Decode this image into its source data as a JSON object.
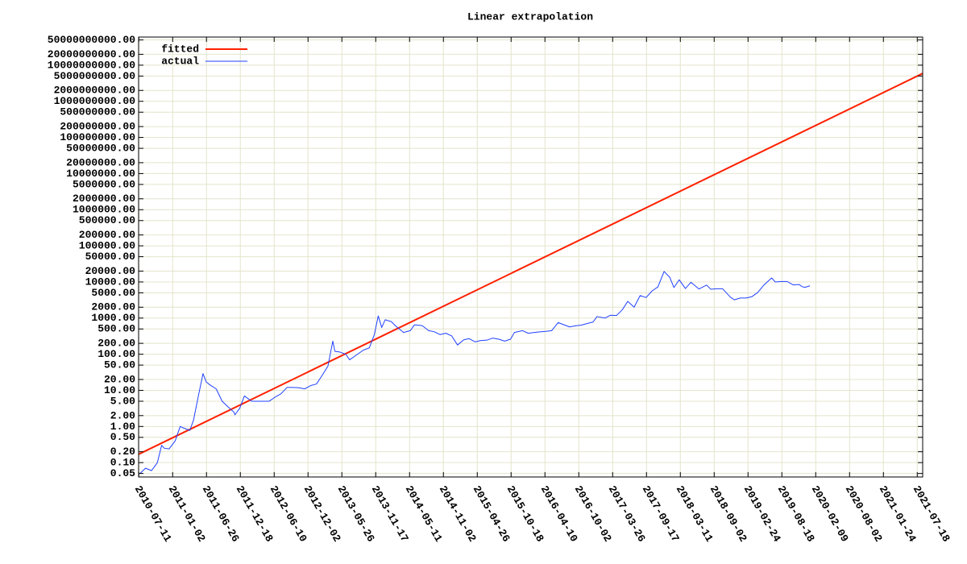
{
  "chart_data": {
    "type": "line",
    "title": "Linear extrapolation",
    "log_scale_y": true,
    "grid": true,
    "legend": "upper left",
    "xlim": [
      "2010-07-10",
      "2021-08-15"
    ],
    "xticks": [
      "2010-07-11",
      "2011-01-02",
      "2011-06-26",
      "2011-12-18",
      "2012-06-10",
      "2012-12-02",
      "2013-05-26",
      "2013-11-17",
      "2014-05-11",
      "2014-11-02",
      "2015-04-26",
      "2015-10-18",
      "2016-04-10",
      "2016-10-02",
      "2017-03-26",
      "2017-09-17",
      "2018-03-11",
      "2018-09-02",
      "2019-02-24",
      "2019-08-18",
      "2020-02-09",
      "2020-08-02",
      "2021-01-24",
      "2021-07-18"
    ],
    "ylim": [
      0.04,
      60000000000
    ],
    "yticks": [
      0.05,
      {
        "value": 0.1,
        "label": "0.10"
      },
      {
        "value": 0.2,
        "label": "0.20"
      },
      {
        "value": 0.5,
        "label": "0.50"
      },
      {
        "value": 1,
        "label": "1.00"
      },
      {
        "value": 2,
        "label": "2.00"
      },
      {
        "value": 5,
        "label": "5.00"
      },
      {
        "value": 10,
        "label": "10.00"
      },
      {
        "value": 20,
        "label": "20.00"
      },
      {
        "value": 50,
        "label": "50.00"
      },
      {
        "value": 100,
        "label": "100.00"
      },
      {
        "value": 200,
        "label": "200.00"
      },
      {
        "value": 500,
        "label": "500.00"
      },
      {
        "value": 1000,
        "label": "1000.00"
      },
      {
        "value": 2000,
        "label": "2000.00"
      },
      {
        "value": 5000,
        "label": "5000.00"
      },
      {
        "value": 10000,
        "label": "10000.00"
      },
      {
        "value": 20000,
        "label": "20000.00"
      },
      {
        "value": 50000,
        "label": "50000.00"
      },
      {
        "value": 100000,
        "label": "100000.00"
      },
      {
        "value": 200000,
        "label": "200000.00"
      },
      {
        "value": 500000,
        "label": "500000.00"
      },
      {
        "value": 1000000,
        "label": "1000000.00"
      },
      {
        "value": 2000000,
        "label": "2000000.00"
      },
      {
        "value": 5000000,
        "label": "5000000.00"
      },
      {
        "value": 10000000,
        "label": "10000000.00"
      },
      {
        "value": 20000000,
        "label": "20000000.00"
      },
      {
        "value": 50000000,
        "label": "50000000.00"
      },
      {
        "value": 100000000,
        "label": "100000000.00"
      },
      {
        "value": 200000000,
        "label": "200000000.00"
      },
      {
        "value": 500000000,
        "label": "500000000.00"
      },
      {
        "value": 1000000000,
        "label": "1000000000.00"
      },
      {
        "value": 2000000000,
        "label": "2000000000.00"
      },
      {
        "value": 5000000000,
        "label": "5000000000.00"
      },
      {
        "value": 10000000000,
        "label": "10000000000.00"
      },
      {
        "value": 20000000000,
        "label": "20000000000.00"
      },
      {
        "value": 50000000000,
        "label": "50000000000.00"
      }
    ],
    "series": [
      {
        "name": "fitted",
        "color": "#ff2000",
        "width": 2,
        "x": [
          "2010-07-10",
          "2021-08-15"
        ],
        "values": [
          0.17,
          5900000000
        ]
      },
      {
        "name": "actual",
        "color": "#2040ff",
        "width": 1,
        "x": [
          "2010-07-17",
          "2010-08-15",
          "2010-09-15",
          "2010-10-15",
          "2010-11-06",
          "2010-11-20",
          "2010-12-15",
          "2011-01-15",
          "2011-02-10",
          "2011-03-01",
          "2011-04-01",
          "2011-04-20",
          "2011-05-15",
          "2011-06-08",
          "2011-06-25",
          "2011-07-15",
          "2011-08-15",
          "2011-09-15",
          "2011-10-15",
          "2011-11-15",
          "2011-11-20",
          "2011-12-15",
          "2012-01-08",
          "2012-02-15",
          "2012-03-15",
          "2012-04-15",
          "2012-05-15",
          "2012-06-15",
          "2012-07-15",
          "2012-08-15",
          "2012-09-15",
          "2012-10-15",
          "2012-11-15",
          "2012-12-15",
          "2013-01-15",
          "2013-02-15",
          "2013-03-15",
          "2013-04-09",
          "2013-04-20",
          "2013-05-15",
          "2013-06-15",
          "2013-07-05",
          "2013-08-15",
          "2013-09-15",
          "2013-10-15",
          "2013-11-10",
          "2013-11-30",
          "2013-12-18",
          "2014-01-05",
          "2014-02-05",
          "2014-03-01",
          "2014-04-10",
          "2014-05-15",
          "2014-06-05",
          "2014-07-15",
          "2014-08-18",
          "2014-09-15",
          "2014-10-15",
          "2014-11-15",
          "2014-12-15",
          "2015-01-14",
          "2015-02-15",
          "2015-03-15",
          "2015-04-15",
          "2015-05-15",
          "2015-06-15",
          "2015-07-15",
          "2015-08-15",
          "2015-09-15",
          "2015-10-15",
          "2015-11-04",
          "2015-12-15",
          "2016-01-15",
          "2016-02-15",
          "2016-03-15",
          "2016-04-15",
          "2016-05-15",
          "2016-06-17",
          "2016-07-15",
          "2016-08-15",
          "2016-09-15",
          "2016-10-15",
          "2016-11-15",
          "2016-12-15",
          "2017-01-04",
          "2017-02-15",
          "2017-03-15",
          "2017-04-15",
          "2017-05-15",
          "2017-06-12",
          "2017-07-15",
          "2017-08-15",
          "2017-09-15",
          "2017-10-15",
          "2017-11-15",
          "2017-12-17",
          "2018-01-15",
          "2018-02-06",
          "2018-03-05",
          "2018-04-06",
          "2018-05-05",
          "2018-06-15",
          "2018-07-25",
          "2018-08-15",
          "2018-09-15",
          "2018-10-15",
          "2018-11-25",
          "2018-12-15",
          "2019-01-15",
          "2019-02-15",
          "2019-03-15",
          "2019-04-15",
          "2019-05-15",
          "2019-06-26",
          "2019-07-15",
          "2019-08-15",
          "2019-09-15",
          "2019-10-15",
          "2019-11-15",
          "2019-12-01",
          "2019-12-15",
          "2020-01-10"
        ],
        "values": [
          0.05,
          0.07,
          0.06,
          0.1,
          0.3,
          0.25,
          0.24,
          0.4,
          1,
          0.9,
          0.78,
          1.5,
          7,
          29,
          17,
          14,
          11,
          5,
          3.5,
          2.5,
          2.1,
          3.2,
          7,
          5,
          5,
          5,
          5,
          6.5,
          8,
          12,
          12,
          11.8,
          11,
          13.5,
          15,
          27,
          47,
          230,
          120,
          115,
          100,
          70,
          100,
          130,
          150,
          350,
          1150,
          550,
          900,
          800,
          600,
          400,
          450,
          650,
          620,
          450,
          420,
          350,
          380,
          320,
          180,
          250,
          270,
          220,
          240,
          245,
          280,
          260,
          230,
          260,
          400,
          450,
          380,
          400,
          415,
          430,
          450,
          750,
          660,
          570,
          610,
          640,
          710,
          780,
          1100,
          1000,
          1200,
          1180,
          1700,
          2900,
          2000,
          4200,
          3700,
          5600,
          7300,
          19500,
          13500,
          7000,
          11500,
          6600,
          9800,
          6400,
          8200,
          6300,
          6500,
          6500,
          3800,
          3200,
          3600,
          3600,
          3900,
          5100,
          8000,
          12900,
          10000,
          10300,
          10300,
          8300,
          8500,
          7400,
          7100,
          7800
        ]
      }
    ]
  }
}
